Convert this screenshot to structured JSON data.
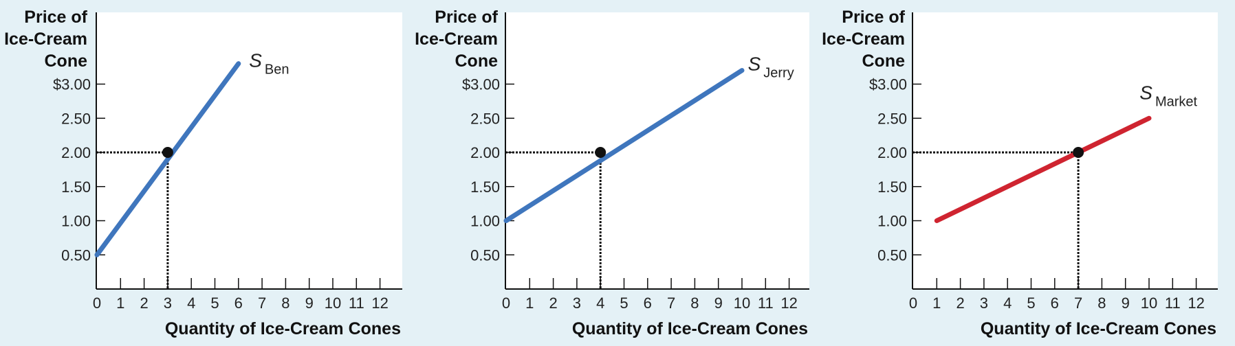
{
  "chart_data": [
    {
      "type": "line",
      "ylabel": [
        "Price of",
        "Ice-Cream",
        "Cone"
      ],
      "xlabel": "Quantity of Ice-Cream Cones",
      "x_ticks": [
        0,
        1,
        2,
        3,
        4,
        5,
        6,
        7,
        8,
        9,
        10,
        11,
        12
      ],
      "y_ticks": [
        0.5,
        1.0,
        1.5,
        2.0,
        2.5,
        3.0
      ],
      "y_tick_labels": [
        "0.50",
        "1.00",
        "1.50",
        "2.00",
        "2.50",
        "$3.00"
      ],
      "xlim": [
        0,
        12.8
      ],
      "ylim": [
        0,
        3.55
      ],
      "series": [
        {
          "name_main": "S",
          "name_sub": "Ben",
          "color": "#3f76bd",
          "points": [
            [
              0,
              0.5
            ],
            [
              6,
              3.3
            ]
          ]
        }
      ],
      "highlight": {
        "x": 3,
        "y": 2.0
      },
      "label_anchor": {
        "x": 6.45,
        "y": 3.25
      }
    },
    {
      "type": "line",
      "ylabel": [
        "Price of",
        "Ice-Cream",
        "Cone"
      ],
      "xlabel": "Quantity of Ice-Cream Cones",
      "x_ticks": [
        0,
        1,
        2,
        3,
        4,
        5,
        6,
        7,
        8,
        9,
        10,
        11,
        12
      ],
      "y_ticks": [
        0.5,
        1.0,
        1.5,
        2.0,
        2.5,
        3.0
      ],
      "y_tick_labels": [
        "0.50",
        "1.00",
        "1.50",
        "2.00",
        "2.50",
        "$3.00"
      ],
      "xlim": [
        0,
        12.8
      ],
      "ylim": [
        0,
        3.55
      ],
      "series": [
        {
          "name_main": "S",
          "name_sub": "Jerry",
          "color": "#3f76bd",
          "points": [
            [
              0,
              1.0
            ],
            [
              10,
              3.2
            ]
          ]
        }
      ],
      "highlight": {
        "x": 4,
        "y": 2.0
      },
      "label_anchor": {
        "x": 10.25,
        "y": 3.2
      }
    },
    {
      "type": "line",
      "ylabel": [
        "Price of",
        "Ice-Cream",
        "Cone"
      ],
      "xlabel": "Quantity of Ice-Cream Cones",
      "x_ticks": [
        0,
        1,
        2,
        3,
        4,
        5,
        6,
        7,
        8,
        9,
        10,
        11,
        12
      ],
      "y_ticks": [
        0.5,
        1.0,
        1.5,
        2.0,
        2.5,
        3.0
      ],
      "y_tick_labels": [
        "0.50",
        "1.00",
        "1.50",
        "2.00",
        "2.50",
        "$3.00"
      ],
      "xlim": [
        0,
        12.8
      ],
      "ylim": [
        0,
        3.55
      ],
      "series": [
        {
          "name_main": "S",
          "name_sub": "Market",
          "color": "#cf2430",
          "points": [
            [
              1,
              1.0
            ],
            [
              10,
              2.5
            ]
          ]
        }
      ],
      "highlight": {
        "x": 7,
        "y": 2.0
      },
      "label_anchor": {
        "x": 9.6,
        "y": 2.78
      }
    }
  ]
}
